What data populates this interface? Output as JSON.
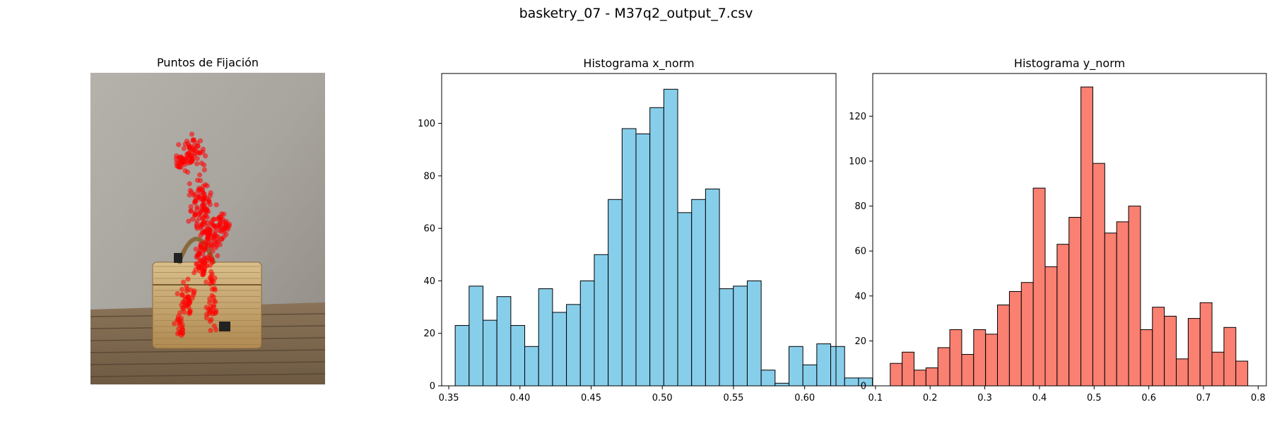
{
  "figure_title": "basketry_07 - M37q2_output_7.csv",
  "image_panel": {
    "title": "Puntos de Fijación",
    "colors": {
      "wall": "#a8a49e",
      "table": "#6e5a43",
      "basket": "#c9a86e",
      "points": "#ff0000"
    }
  },
  "chart_data": [
    {
      "type": "bar",
      "title": "Histograma x_norm",
      "xlabel": "",
      "ylabel": "",
      "color": "#87ceeb",
      "edgecolor": "#000000",
      "bin_start": 0.3545,
      "bin_width": 0.00977,
      "values": [
        23,
        38,
        25,
        34,
        23,
        15,
        37,
        28,
        31,
        40,
        50,
        71,
        98,
        96,
        106,
        113,
        66,
        71,
        75,
        37,
        38,
        40,
        6,
        1,
        15,
        8,
        16,
        15,
        3,
        3
      ],
      "xlim": [
        0.345,
        0.622
      ],
      "ylim": [
        0,
        119
      ],
      "xticks": [
        0.35,
        0.4,
        0.45,
        0.5,
        0.55,
        0.6
      ],
      "xtick_labels": [
        "0.35",
        "0.40",
        "0.45",
        "0.50",
        "0.55",
        "0.60"
      ],
      "yticks": [
        0,
        20,
        40,
        60,
        80,
        100
      ],
      "ytick_labels": [
        "0",
        "20",
        "40",
        "60",
        "80",
        "100"
      ]
    },
    {
      "type": "bar",
      "title": "Histograma y_norm",
      "xlabel": "",
      "ylabel": "",
      "color": "#fa8072",
      "edgecolor": "#000000",
      "bin_start": 0.127,
      "bin_width": 0.0218,
      "values": [
        10,
        15,
        7,
        8,
        17,
        25,
        14,
        25,
        23,
        36,
        42,
        46,
        88,
        53,
        63,
        75,
        133,
        99,
        68,
        73,
        80,
        25,
        35,
        31,
        12,
        30,
        37,
        15,
        26,
        11
      ],
      "xlim": [
        0.095,
        0.815
      ],
      "ylim": [
        0,
        139
      ],
      "xticks": [
        0.1,
        0.2,
        0.3,
        0.4,
        0.5,
        0.6,
        0.7,
        0.8
      ],
      "xtick_labels": [
        "0.1",
        "0.2",
        "0.3",
        "0.4",
        "0.5",
        "0.6",
        "0.7",
        "0.8"
      ],
      "yticks": [
        0,
        20,
        40,
        60,
        80,
        100,
        120
      ],
      "ytick_labels": [
        "0",
        "20",
        "40",
        "60",
        "80",
        "100",
        "120"
      ]
    }
  ]
}
